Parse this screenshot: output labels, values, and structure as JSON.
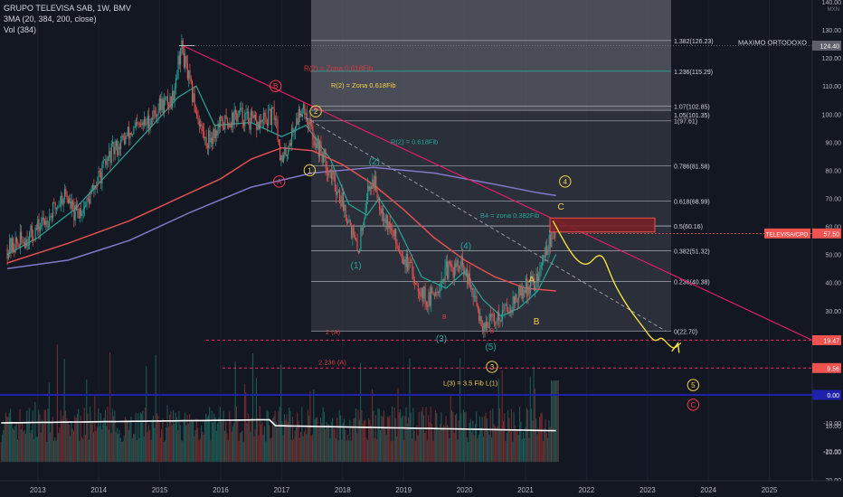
{
  "legend": {
    "title": "GRUPO TELEVISA SAB, 1W, BMV",
    "ma": "3MA (20, 384, 200, close)",
    "vol": "Vol (384)"
  },
  "colors": {
    "background": "#131722",
    "up": "#26a69a",
    "down": "#ef5350",
    "ma20": "#26a69a",
    "ma200": "#e0504f",
    "ma384": "#8078c8",
    "trendline": "#e91e63",
    "fib_box": "#787b86",
    "forecast": "#ffeb3b",
    "label_red": "#f23645",
    "label_yellow": "#f5d04a",
    "label_teal": "#26a69a",
    "volume_ma": "#ffffff",
    "zero_line": "#1e22aa"
  },
  "chart_data": {
    "type": "candlestick",
    "symbol": "TELEVISA/CPO",
    "timeframe": "1W",
    "exchange": "BMV",
    "x_ticks": [
      "2013",
      "2014",
      "2015",
      "2016",
      "2017",
      "2018",
      "2019",
      "2020",
      "2021",
      "2022",
      "2023",
      "2024",
      "2025"
    ],
    "y_ticks": [
      "140.00",
      "130.00",
      "120.00",
      "110.00",
      "100.00",
      "90.00",
      "80.00",
      "70.00",
      "60.00",
      "50.00",
      "40.00",
      "30.00",
      "20.00",
      "10.00",
      "0.00",
      "-10.00",
      "-20.00"
    ],
    "y_range": [
      -25,
      140
    ],
    "y_unit": "MXN",
    "price_path": [
      [
        2012.5,
        52
      ],
      [
        2012.9,
        57
      ],
      [
        2013.2,
        64
      ],
      [
        2013.45,
        72
      ],
      [
        2013.6,
        64
      ],
      [
        2013.8,
        68
      ],
      [
        2014.0,
        77
      ],
      [
        2014.2,
        86
      ],
      [
        2014.5,
        93
      ],
      [
        2014.8,
        97
      ],
      [
        2015.0,
        103
      ],
      [
        2015.2,
        105
      ],
      [
        2015.35,
        124.4
      ],
      [
        2015.55,
        105
      ],
      [
        2015.75,
        90
      ],
      [
        2016.0,
        96
      ],
      [
        2016.3,
        100
      ],
      [
        2016.6,
        96
      ],
      [
        2016.9,
        100
      ],
      [
        2017.0,
        82
      ],
      [
        2017.2,
        95
      ],
      [
        2017.35,
        104
      ],
      [
        2017.5,
        93
      ],
      [
        2017.7,
        84
      ],
      [
        2017.9,
        74
      ],
      [
        2018.1,
        63
      ],
      [
        2018.25,
        50
      ],
      [
        2018.4,
        72
      ],
      [
        2018.5,
        77
      ],
      [
        2018.65,
        66
      ],
      [
        2018.85,
        56
      ],
      [
        2019.1,
        45
      ],
      [
        2019.4,
        33
      ],
      [
        2019.7,
        44
      ],
      [
        2019.95,
        46
      ],
      [
        2020.1,
        38
      ],
      [
        2020.3,
        25
      ],
      [
        2020.5,
        27
      ],
      [
        2020.8,
        33
      ],
      [
        2021.0,
        38
      ],
      [
        2021.2,
        41
      ],
      [
        2021.35,
        53
      ],
      [
        2021.5,
        57.5
      ]
    ],
    "series": [
      {
        "name": "20",
        "values": [
          [
            2012.5,
            50
          ],
          [
            2013.0,
            56
          ],
          [
            2013.6,
            66
          ],
          [
            2014.2,
            80
          ],
          [
            2014.8,
            94
          ],
          [
            2015.3,
            106
          ],
          [
            2015.6,
            110
          ],
          [
            2015.9,
            96
          ],
          [
            2016.5,
            97
          ],
          [
            2017.0,
            92
          ],
          [
            2017.4,
            96
          ],
          [
            2017.8,
            84
          ],
          [
            2018.1,
            68
          ],
          [
            2018.4,
            64
          ],
          [
            2018.6,
            70
          ],
          [
            2018.9,
            60
          ],
          [
            2019.3,
            42
          ],
          [
            2019.7,
            38
          ],
          [
            2020.0,
            44
          ],
          [
            2020.3,
            34
          ],
          [
            2020.6,
            28
          ],
          [
            2020.9,
            31
          ],
          [
            2021.2,
            37
          ],
          [
            2021.5,
            50
          ]
        ]
      },
      {
        "name": "384",
        "values": [
          [
            2012.5,
            45
          ],
          [
            2013.5,
            48
          ],
          [
            2014.5,
            55
          ],
          [
            2015.5,
            65
          ],
          [
            2016.5,
            74
          ],
          [
            2017.5,
            79
          ],
          [
            2018.5,
            81
          ],
          [
            2019.5,
            79
          ],
          [
            2020.5,
            75
          ],
          [
            2021.2,
            72
          ],
          [
            2021.5,
            71
          ]
        ]
      },
      {
        "name": "200",
        "values": [
          [
            2012.5,
            47
          ],
          [
            2013.5,
            54
          ],
          [
            2014.5,
            62
          ],
          [
            2015.5,
            72
          ],
          [
            2016.0,
            77
          ],
          [
            2016.5,
            84
          ],
          [
            2017.0,
            88
          ],
          [
            2017.5,
            87
          ],
          [
            2018.0,
            82
          ],
          [
            2018.5,
            75
          ],
          [
            2019.0,
            66
          ],
          [
            2019.5,
            56
          ],
          [
            2020.0,
            48
          ],
          [
            2020.5,
            42
          ],
          [
            2021.0,
            38
          ],
          [
            2021.5,
            37
          ]
        ]
      }
    ],
    "fibonacci": {
      "anchor_high": 124.4,
      "anchor_low": 22.7,
      "levels": [
        {
          "label": "1.382(126.23)",
          "value": 126.23
        },
        {
          "label": "1.236(115.29)",
          "value": 115.29
        },
        {
          "label": "1.07(102.85)",
          "value": 102.85
        },
        {
          "label": "1.05(101.35)",
          "value": 101.35
        },
        {
          "label": "1(97.61)",
          "value": 97.61
        },
        {
          "label": "0.786(81.58)",
          "value": 81.58
        },
        {
          "label": "0.618(68.99)",
          "value": 68.99
        },
        {
          "label": "0.5(60.16)",
          "value": 60.16
        },
        {
          "label": "0.382(51.32)",
          "value": 51.32
        },
        {
          "label": "0.236(40.38)",
          "value": 40.38
        },
        {
          "label": "0(22.70)",
          "value": 22.7
        }
      ]
    },
    "price_labels": [
      {
        "text": "124.40",
        "value": 124.4,
        "kind": "grey"
      },
      {
        "text": "TELEVISA/CPO",
        "value": 57.5,
        "kind": "red_name"
      },
      {
        "text": "57.50",
        "value": 57.5,
        "kind": "red"
      },
      {
        "text": "19.47",
        "value": 19.47,
        "kind": "red"
      },
      {
        "text": "9.56",
        "value": 9.56,
        "kind": "red"
      },
      {
        "text": "0.00",
        "value": 0,
        "kind": "blue"
      }
    ],
    "annotations": {
      "maximo": "MAXIMO ORTODOXO",
      "r2_red": "R(2) = Zona 0.618Fib",
      "r2_yellow": "R(2) = Zona 0.618Fib",
      "r2_teal": "R(2) = 0.618Fib",
      "b4": "B4 = zona 0.382Fib",
      "ext_2a": "2 (A)",
      "ext_2236": "2.236 (A)",
      "l3": "L(3) = 3.5 Fib L(1)"
    },
    "wave_labels": [
      {
        "text": "B",
        "style": "circle_red",
        "x": 2016.9,
        "y": 110
      },
      {
        "text": "A",
        "style": "circle_red",
        "x": 2016.96,
        "y": 76
      },
      {
        "text": "2",
        "style": "circle_yellow",
        "x": 2017.56,
        "y": 101
      },
      {
        "text": "1",
        "style": "circle_yellow",
        "x": 2017.46,
        "y": 80
      },
      {
        "text": "(2)",
        "style": "text_teal",
        "x": 2018.52,
        "y": 83
      },
      {
        "text": "(1)",
        "style": "text_teal",
        "x": 2018.22,
        "y": 46
      },
      {
        "text": "(4)",
        "style": "text_teal",
        "x": 2020.02,
        "y": 53
      },
      {
        "text": "(3)",
        "style": "text_teal",
        "x": 2019.62,
        "y": 20
      },
      {
        "text": "(5)",
        "style": "text_teal",
        "x": 2020.43,
        "y": 17
      },
      {
        "text": "B",
        "style": "text_red_small",
        "x": 2019.67,
        "y": 28
      },
      {
        "text": "B",
        "style": "text_red_small",
        "x": 2020.45,
        "y": 23
      },
      {
        "text": "A",
        "style": "text_yellow",
        "x": 2021.1,
        "y": 41
      },
      {
        "text": "B",
        "style": "text_yellow",
        "x": 2021.18,
        "y": 26
      },
      {
        "text": "C",
        "style": "text_yellow",
        "x": 2021.58,
        "y": 67
      },
      {
        "text": "4",
        "style": "circle_yellow",
        "x": 2021.65,
        "y": 76
      },
      {
        "text": "3",
        "style": "circle_yellow",
        "x": 2020.45,
        "y": 10
      },
      {
        "text": "5",
        "style": "circle_yellow",
        "x": 2023.75,
        "y": 3.5
      },
      {
        "text": "C",
        "style": "circle_red",
        "x": 2023.75,
        "y": -3.5
      }
    ],
    "volume": {
      "ticks": [
        "10.00",
        "-10.00",
        "-20.00"
      ]
    }
  }
}
